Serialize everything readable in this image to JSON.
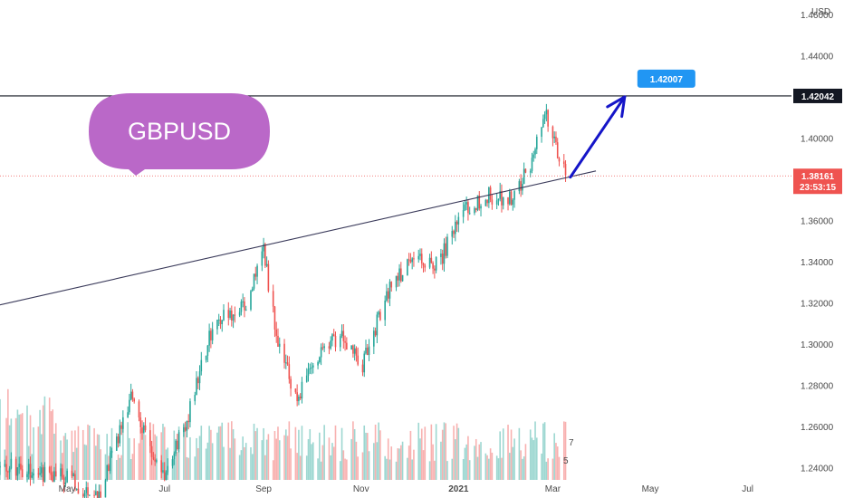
{
  "chart_data": {
    "type": "candlestick",
    "title": "GBPUSD",
    "currency_unit": "USD",
    "y_axis": {
      "ticks": [
        "1.24000",
        "1.26000",
        "1.28000",
        "1.30000",
        "1.32000",
        "1.34000",
        "1.36000",
        "1.38000",
        "1.40000",
        "1.42000",
        "1.44000",
        "1.46000"
      ],
      "ylim": [
        1.234,
        1.467
      ],
      "position": "right"
    },
    "x_axis": {
      "labels": [
        "May",
        "Jul",
        "Sep",
        "Nov",
        "2021",
        "Mar",
        "May",
        "Jul"
      ],
      "xlim": [
        "2020-03-20",
        "2021-07-25"
      ]
    },
    "price_path": [
      [
        "2020-04-01",
        1.24
      ],
      [
        "2020-05-01",
        1.235
      ],
      [
        "2020-05-20",
        1.225
      ],
      [
        "2020-06-10",
        1.275
      ],
      [
        "2020-06-30",
        1.235
      ],
      [
        "2020-07-15",
        1.262
      ],
      [
        "2020-08-01",
        1.312
      ],
      [
        "2020-08-20",
        1.317
      ],
      [
        "2020-09-01",
        1.345
      ],
      [
        "2020-09-10",
        1.3
      ],
      [
        "2020-09-22",
        1.273
      ],
      [
        "2020-10-01",
        1.29
      ],
      [
        "2020-10-20",
        1.305
      ],
      [
        "2020-11-02",
        1.29
      ],
      [
        "2020-11-20",
        1.33
      ],
      [
        "2020-12-05",
        1.34
      ],
      [
        "2020-12-20",
        1.34
      ],
      [
        "2021-01-05",
        1.365
      ],
      [
        "2021-01-20",
        1.372
      ],
      [
        "2021-02-05",
        1.37
      ],
      [
        "2021-02-15",
        1.388
      ],
      [
        "2021-02-24",
        1.414
      ],
      [
        "2021-03-03",
        1.396
      ],
      [
        "2021-03-09",
        1.382
      ]
    ],
    "resistance_level": 1.42042,
    "current_price": "1.38161",
    "countdown": "23:53:15",
    "horizontal_line_label": "1.42042",
    "target_label": "1.42007",
    "trendline": {
      "start": [
        "2020-03-20",
        1.319
      ],
      "end": [
        "2021-03-28",
        1.384
      ]
    },
    "target_arrow": {
      "start": [
        "2021-03-12",
        1.381
      ],
      "end": [
        "2021-04-15",
        1.42
      ]
    },
    "volume": {
      "visible": true,
      "scale_hint": [
        "7",
        "5"
      ]
    },
    "colors": {
      "up": "#26a69a",
      "down": "#ef5350",
      "bubble": "#ba68c8",
      "arrow": "#1515c8",
      "target_badge": "#2196f3",
      "line_badge": "#131722",
      "price_badge": "#ef5350",
      "trendline": "#3a3a5a"
    }
  }
}
